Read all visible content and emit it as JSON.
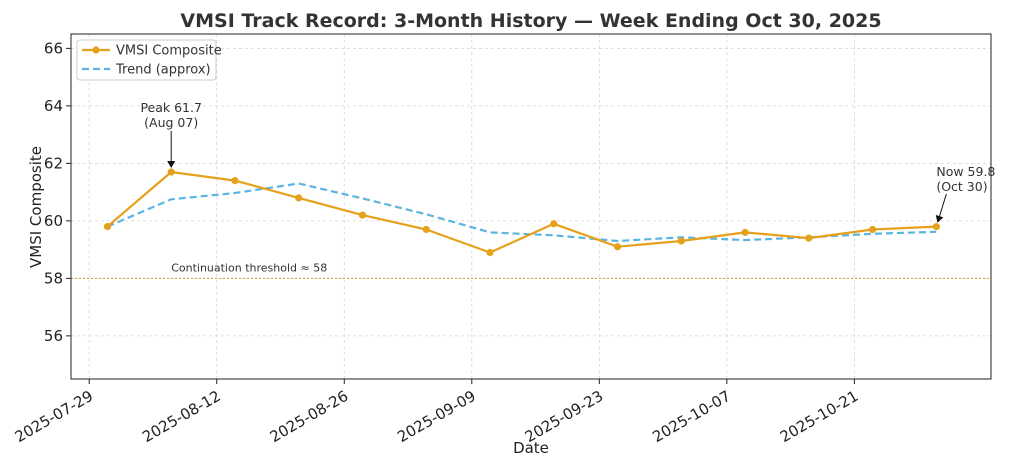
{
  "chart_data": {
    "type": "line",
    "title": "VMSI Track Record: 3-Month History — Week Ending Oct 30, 2025",
    "xlabel": "Date",
    "ylabel": "VMSI Composite",
    "ylim": [
      54.5,
      66.5
    ],
    "yticks": [
      56,
      58,
      60,
      62,
      64,
      66
    ],
    "xlim": [
      "2025-07-27",
      "2025-11-05"
    ],
    "xticks": [
      "2025-07-29",
      "2025-08-12",
      "2025-08-26",
      "2025-09-09",
      "2025-09-23",
      "2025-10-07",
      "2025-10-21"
    ],
    "grid": true,
    "legend_position": "top-left",
    "series": [
      {
        "name": "VMSI Composite",
        "color": "#E5A11C",
        "style": "solid-markers",
        "x": [
          "2025-07-31",
          "2025-08-07",
          "2025-08-14",
          "2025-08-21",
          "2025-08-28",
          "2025-09-04",
          "2025-09-11",
          "2025-09-18",
          "2025-09-25",
          "2025-10-02",
          "2025-10-09",
          "2025-10-16",
          "2025-10-23",
          "2025-10-30"
        ],
        "values": [
          59.8,
          61.7,
          61.4,
          60.8,
          60.2,
          59.7,
          58.9,
          59.9,
          59.1,
          59.3,
          59.6,
          59.4,
          59.7,
          59.8
        ]
      },
      {
        "name": "Trend (approx)",
        "color": "#5BB5E0",
        "style": "dashed",
        "x": [
          "2025-07-31",
          "2025-08-07",
          "2025-08-14",
          "2025-08-21",
          "2025-08-28",
          "2025-09-04",
          "2025-09-11",
          "2025-09-18",
          "2025-09-25",
          "2025-10-02",
          "2025-10-09",
          "2025-10-16",
          "2025-10-23",
          "2025-10-30"
        ],
        "values": [
          59.8,
          60.75,
          60.97,
          61.3,
          60.78,
          60.23,
          59.6,
          59.5,
          59.3,
          59.43,
          59.33,
          59.43,
          59.55,
          59.62
        ]
      }
    ],
    "threshold": {
      "value": 58,
      "label": "Continuation threshold ≈ 58",
      "label_x": "2025-08-07",
      "color": "#C9A227"
    },
    "annotations": [
      {
        "x": "2025-08-07",
        "y": 61.7,
        "lines": [
          "Peak 61.7",
          "(Aug 07)"
        ]
      },
      {
        "x": "2025-10-30",
        "y": 59.8,
        "lines": [
          "Now 59.8",
          "(Oct 30)"
        ]
      }
    ]
  }
}
